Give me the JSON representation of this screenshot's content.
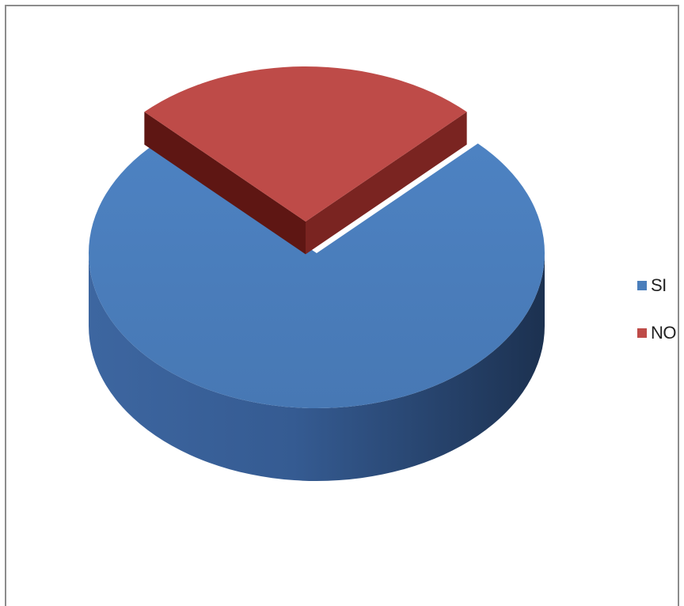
{
  "chart_data": {
    "type": "pie",
    "style": "3d-exploded",
    "categories": [
      "SI",
      "NO"
    ],
    "values": [
      75,
      25
    ],
    "colors": {
      "SI": "#4a7ebb",
      "NO": "#be4b48"
    },
    "legend": {
      "position": "right",
      "entries": [
        "SI",
        "NO"
      ]
    },
    "title": ""
  }
}
